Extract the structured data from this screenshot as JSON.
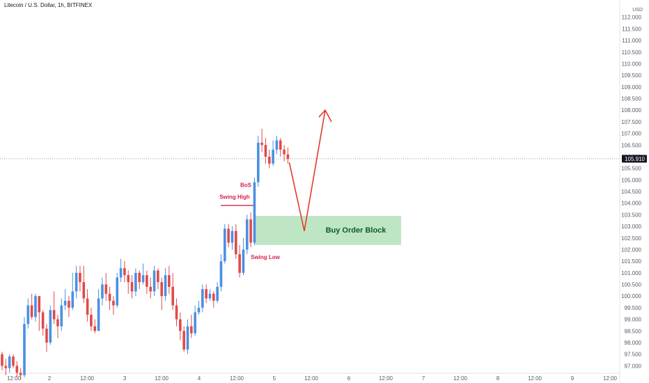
{
  "header": {
    "title": "Litecoin / U.S. Dollar, 1h, BITFINEX",
    "currency_line1": "USD"
  },
  "colors": {
    "up": "#4a90e2",
    "down": "#e04a4a",
    "bos": "#d6204e",
    "arrow": "#e33a2e",
    "orderblock": "#bfe6c4",
    "orderblock_text": "#0c5a2a",
    "price_tag": "#131722"
  },
  "last_price": {
    "value": 105.91,
    "label": "105.910"
  },
  "chart_data": {
    "type": "candlestick",
    "y_axis": {
      "min": 96.5,
      "max": 112.5,
      "step": 0.5,
      "labels": [
        "97.000",
        "97.500",
        "98.000",
        "98.500",
        "99.000",
        "99.500",
        "100.000",
        "100.500",
        "101.000",
        "101.500",
        "102.000",
        "102.500",
        "103.000",
        "103.500",
        "104.000",
        "104.500",
        "105.000",
        "105.500",
        "106.000",
        "106.500",
        "107.000",
        "107.500",
        "108.000",
        "108.500",
        "109.000",
        "109.500",
        "110.000",
        "110.500",
        "111.000",
        "111.500",
        "112.000"
      ]
    },
    "x_axis": {
      "labels": [
        "12:00",
        "2",
        "12:00",
        "3",
        "12:00",
        "4",
        "12:00",
        "5",
        "12:00",
        "6",
        "12:00",
        "7",
        "12:00",
        "8",
        "12:00",
        "9",
        "12:00"
      ]
    },
    "candles": [
      [
        97.5,
        97.0,
        97.6,
        96.8
      ],
      [
        97.0,
        96.9,
        97.3,
        96.6
      ],
      [
        96.9,
        97.4,
        97.5,
        96.7
      ],
      [
        97.4,
        97.0,
        97.5,
        96.9
      ],
      [
        97.0,
        96.7,
        97.2,
        96.5
      ],
      [
        96.7,
        96.6,
        96.9,
        96.4
      ],
      [
        96.6,
        98.8,
        99.1,
        96.5
      ],
      [
        98.8,
        99.6,
        99.9,
        98.6
      ],
      [
        99.6,
        99.1,
        100.1,
        99.0
      ],
      [
        99.1,
        100.0,
        100.1,
        98.9
      ],
      [
        100.0,
        99.3,
        100.0,
        98.5
      ],
      [
        99.3,
        98.6,
        99.4,
        98.3
      ],
      [
        98.6,
        98.0,
        98.8,
        97.6
      ],
      [
        98.0,
        99.4,
        99.6,
        97.9
      ],
      [
        99.4,
        99.0,
        100.2,
        98.8
      ],
      [
        99.0,
        98.7,
        99.2,
        98.2
      ],
      [
        98.7,
        99.6,
        99.9,
        98.5
      ],
      [
        99.6,
        99.8,
        100.3,
        99.4
      ],
      [
        99.8,
        99.5,
        100.0,
        99.1
      ],
      [
        99.5,
        100.2,
        101.0,
        99.4
      ],
      [
        100.2,
        101.0,
        101.3,
        99.9
      ],
      [
        101.0,
        100.6,
        101.3,
        100.2
      ],
      [
        100.6,
        99.9,
        101.3,
        99.7
      ],
      [
        99.9,
        99.2,
        100.3,
        98.9
      ],
      [
        99.2,
        98.7,
        99.5,
        98.5
      ],
      [
        98.7,
        98.5,
        99.0,
        98.4
      ],
      [
        98.5,
        99.9,
        100.3,
        98.6
      ],
      [
        99.9,
        100.5,
        100.8,
        99.6
      ],
      [
        100.5,
        100.1,
        101.0,
        99.8
      ],
      [
        100.1,
        99.8,
        100.4,
        99.4
      ],
      [
        99.8,
        99.6,
        100.0,
        99.2
      ],
      [
        99.6,
        100.8,
        101.0,
        99.5
      ],
      [
        100.8,
        101.2,
        101.6,
        100.6
      ],
      [
        101.2,
        100.9,
        101.5,
        100.6
      ],
      [
        100.9,
        100.6,
        101.1,
        100.1
      ],
      [
        100.6,
        100.2,
        100.9,
        99.9
      ],
      [
        100.2,
        101.0,
        101.2,
        100.0
      ],
      [
        101.0,
        100.6,
        101.1,
        100.3
      ],
      [
        100.6,
        100.9,
        101.4,
        100.5
      ],
      [
        100.9,
        100.4,
        101.1,
        100.1
      ],
      [
        100.4,
        100.2,
        100.8,
        99.9
      ],
      [
        100.2,
        101.1,
        101.3,
        100.0
      ],
      [
        101.1,
        100.6,
        101.2,
        100.3
      ],
      [
        100.6,
        100.0,
        100.8,
        99.4
      ],
      [
        100.0,
        100.9,
        101.2,
        99.8
      ],
      [
        100.9,
        100.4,
        101.3,
        100.1
      ],
      [
        100.4,
        99.6,
        101.0,
        99.4
      ],
      [
        99.6,
        99.0,
        99.9,
        98.7
      ],
      [
        99.0,
        98.5,
        99.3,
        98.1
      ],
      [
        98.5,
        97.7,
        98.7,
        97.6
      ],
      [
        97.7,
        98.7,
        99.0,
        97.5
      ],
      [
        98.7,
        98.4,
        99.2,
        98.2
      ],
      [
        98.4,
        99.3,
        99.6,
        98.3
      ],
      [
        99.3,
        99.5,
        99.8,
        99.2
      ],
      [
        99.5,
        100.3,
        100.5,
        99.3
      ],
      [
        100.3,
        99.9,
        100.5,
        99.7
      ],
      [
        99.9,
        100.1,
        100.3,
        99.8
      ],
      [
        100.1,
        99.8,
        100.2,
        99.5
      ],
      [
        99.8,
        100.4,
        100.6,
        99.7
      ],
      [
        100.4,
        101.5,
        101.8,
        100.2
      ],
      [
        101.5,
        102.9,
        103.1,
        101.4
      ],
      [
        102.9,
        102.3,
        103.1,
        102.1
      ],
      [
        102.3,
        102.8,
        103.0,
        102.0
      ],
      [
        102.8,
        101.8,
        103.1,
        101.6
      ],
      [
        101.8,
        101.0,
        102.2,
        100.8
      ],
      [
        101.0,
        102.0,
        102.5,
        100.9
      ],
      [
        102.0,
        103.3,
        103.5,
        101.8
      ],
      [
        103.3,
        102.3,
        103.6,
        102.1
      ],
      [
        102.3,
        104.9,
        105.1,
        102.2
      ],
      [
        104.9,
        106.6,
        106.9,
        104.7
      ],
      [
        106.6,
        106.5,
        107.2,
        106.2
      ],
      [
        106.5,
        106.0,
        106.8,
        105.7
      ],
      [
        106.0,
        105.7,
        106.3,
        105.5
      ],
      [
        105.7,
        106.3,
        106.7,
        105.6
      ],
      [
        106.3,
        106.7,
        106.9,
        106.1
      ],
      [
        106.7,
        106.3,
        106.8,
        106.0
      ],
      [
        106.3,
        106.1,
        106.5,
        105.8
      ],
      [
        106.1,
        105.9,
        106.4,
        105.7
      ]
    ],
    "annotations": {
      "bos": "BoS",
      "swing_high": "Swing High",
      "swing_low": "Swing Low",
      "order_block": "Buy Order Block"
    }
  }
}
